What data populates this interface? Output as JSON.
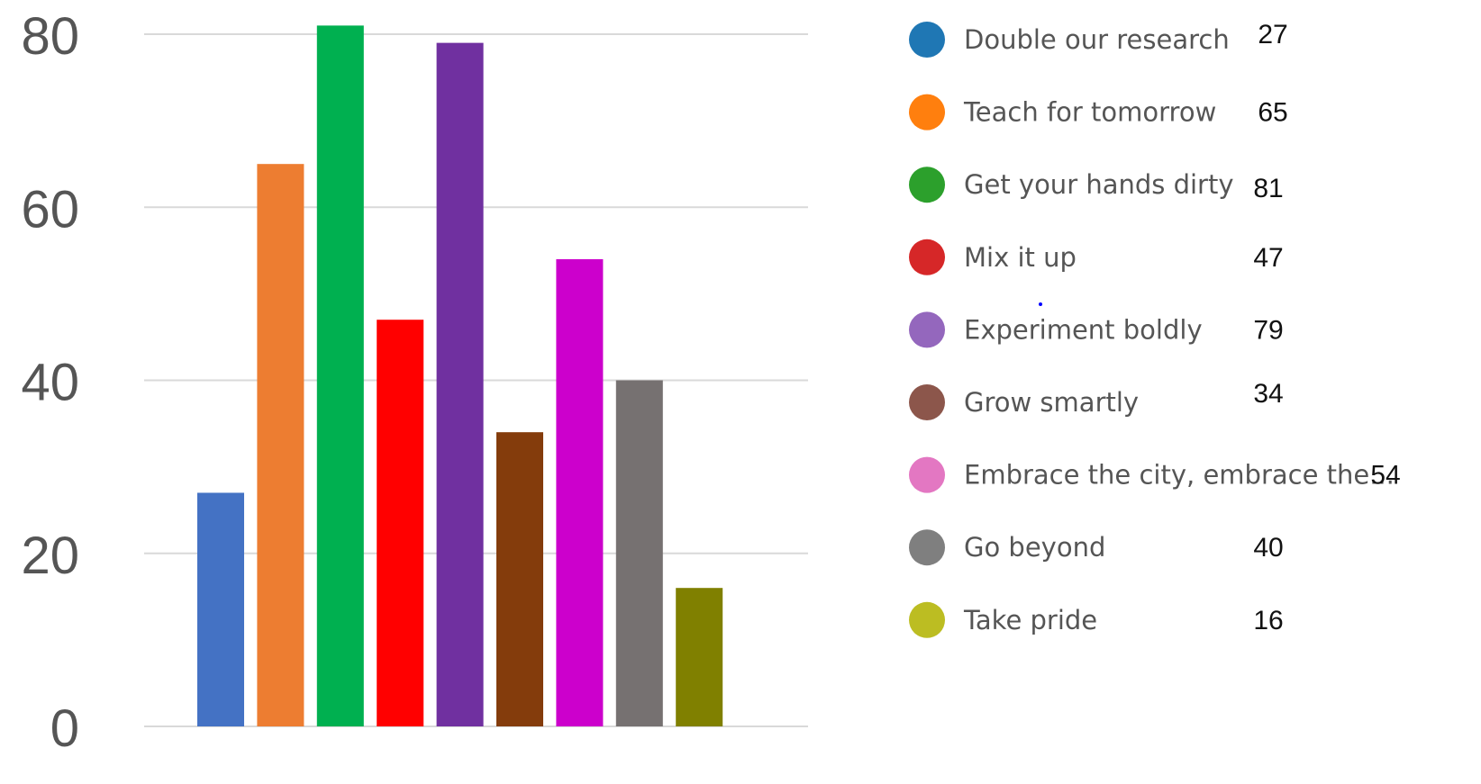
{
  "chart_data": {
    "type": "bar",
    "title": "",
    "xlabel": "",
    "ylabel": "",
    "ylim": [
      0,
      80
    ],
    "yticks": [
      0,
      20,
      40,
      60,
      80
    ],
    "grid": true,
    "legend_position": "right",
    "categories": [
      "Double our research",
      "Teach for tomorrow",
      "Get your hands dirty",
      "Mix it up",
      "Experiment boldly",
      "Grow smartly",
      "Embrace the city, embrace the...",
      "Go beyond",
      "Take pride"
    ],
    "values": [
      27,
      65,
      81,
      47,
      79,
      34,
      54,
      40,
      16
    ],
    "bar_colors": [
      "#4472c4",
      "#ed7d31",
      "#00b050",
      "#ff0000",
      "#7030a0",
      "#843c0c",
      "#cc00cc",
      "#767171",
      "#808000"
    ],
    "legend_colors": [
      "#1f77b4",
      "#ff7f0e",
      "#2ca02c",
      "#d62728",
      "#9467bd",
      "#8c564b",
      "#e377c2",
      "#7f7f7f",
      "#bcbd22"
    ]
  }
}
